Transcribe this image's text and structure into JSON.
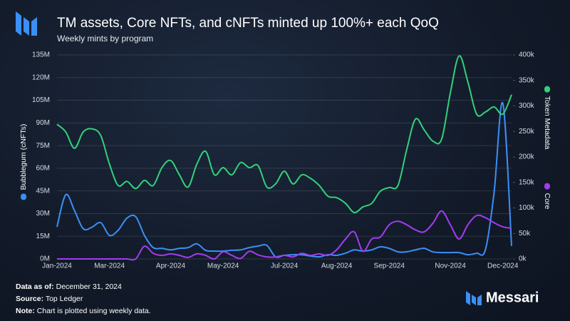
{
  "chart_data": {
    "type": "line",
    "title": "TM assets, Core NFTs, and cNFTs minted up 100%+ each QoQ",
    "subtitle": "Weekly mints by program",
    "categories": [
      "Jan-2024",
      null,
      null,
      null,
      null,
      null,
      "Mar-2024",
      null,
      null,
      null,
      null,
      null,
      null,
      "Apr-2024",
      null,
      null,
      null,
      null,
      null,
      "May-2024",
      null,
      null,
      null,
      null,
      null,
      null,
      "Jul-2024",
      null,
      null,
      null,
      null,
      null,
      "Aug-2024",
      null,
      null,
      null,
      null,
      null,
      "Sep-2024",
      null,
      null,
      null,
      null,
      null,
      null,
      "Nov-2024",
      null,
      null,
      null,
      null,
      null,
      "Dec-2024",
      null
    ],
    "series": [
      {
        "name": "Bubblegum (cNFTs)",
        "color": "#3b8ff5",
        "axis": "y",
        "values": [
          21200000,
          42500000,
          32000000,
          20000000,
          21000000,
          24000000,
          15600000,
          19000000,
          27000000,
          28000000,
          15600000,
          7500000,
          7000000,
          6000000,
          7000000,
          7500000,
          10000000,
          5700000,
          5200000,
          5200000,
          5700000,
          6000000,
          7500000,
          8500000,
          9000000,
          1400000,
          2400000,
          2800000,
          2800000,
          1900000,
          1400000,
          2800000,
          2400000,
          3800000,
          6000000,
          5200000,
          6000000,
          8000000,
          7000000,
          4700000,
          4700000,
          6000000,
          7000000,
          4700000,
          4200000,
          4200000,
          4200000,
          2800000,
          3800000,
          6000000,
          44000000,
          103000000,
          8500000
        ]
      },
      {
        "name": "Token Metadata",
        "color": "#33d17a",
        "axis": "y2",
        "values": [
          264000,
          249000,
          217000,
          249000,
          255000,
          242000,
          186000,
          144000,
          152000,
          138000,
          154000,
          144000,
          179000,
          193000,
          165000,
          141000,
          186000,
          211000,
          165000,
          179000,
          165000,
          189000,
          179000,
          183000,
          141000,
          147000,
          172000,
          147000,
          165000,
          158000,
          144000,
          123000,
          120000,
          109000,
          91000,
          102000,
          109000,
          133000,
          140000,
          144000,
          214000,
          274000,
          253000,
          231000,
          235000,
          326000,
          398000,
          347000,
          284000,
          288000,
          298000,
          284000,
          322000
        ]
      },
      {
        "name": "Core",
        "color": "#a23cf0",
        "axis": "y2",
        "values": [
          0,
          0,
          0,
          0,
          0,
          0,
          0,
          0,
          0,
          0,
          25000,
          11000,
          7000,
          10000,
          7000,
          3000,
          10000,
          7000,
          0,
          14000,
          7000,
          1000,
          15000,
          8000,
          4000,
          4000,
          7000,
          4000,
          11000,
          7000,
          10000,
          7000,
          18000,
          39000,
          53000,
          15000,
          39000,
          43000,
          67000,
          74000,
          67000,
          57000,
          53000,
          70000,
          94000,
          67000,
          39000,
          67000,
          85000,
          81000,
          71000,
          63000,
          60000
        ]
      }
    ],
    "ylim": [
      0,
      135000000
    ],
    "yticks": [
      {
        "value": 0,
        "label": "0M"
      },
      {
        "value": 15000000,
        "label": "15M"
      },
      {
        "value": 30000000,
        "label": "30M"
      },
      {
        "value": 45000000,
        "label": "45M"
      },
      {
        "value": 60000000,
        "label": "60M"
      },
      {
        "value": 75000000,
        "label": "75M"
      },
      {
        "value": 90000000,
        "label": "90M"
      },
      {
        "value": 105000000,
        "label": "105M"
      },
      {
        "value": 120000000,
        "label": "120M"
      },
      {
        "value": 135000000,
        "label": "135M"
      }
    ],
    "y2lim": [
      0,
      400000
    ],
    "y2ticks": [
      {
        "value": 0,
        "label": "0k"
      },
      {
        "value": 50000,
        "label": "50k"
      },
      {
        "value": 100000,
        "label": "100k"
      },
      {
        "value": 150000,
        "label": "150k"
      },
      {
        "value": 200000,
        "label": "200k"
      },
      {
        "value": 250000,
        "label": "250k"
      },
      {
        "value": 300000,
        "label": "300k"
      },
      {
        "value": 350000,
        "label": "350k"
      },
      {
        "value": 400000,
        "label": "400k"
      }
    ],
    "grid": true
  },
  "footer": [
    {
      "label": "Data as of:",
      "text": "December 31, 2024"
    },
    {
      "label": "Source:",
      "text": "Top Ledger"
    },
    {
      "label": "Note:",
      "text": "Chart is plotted using weekly data."
    }
  ],
  "brand": "Messari"
}
